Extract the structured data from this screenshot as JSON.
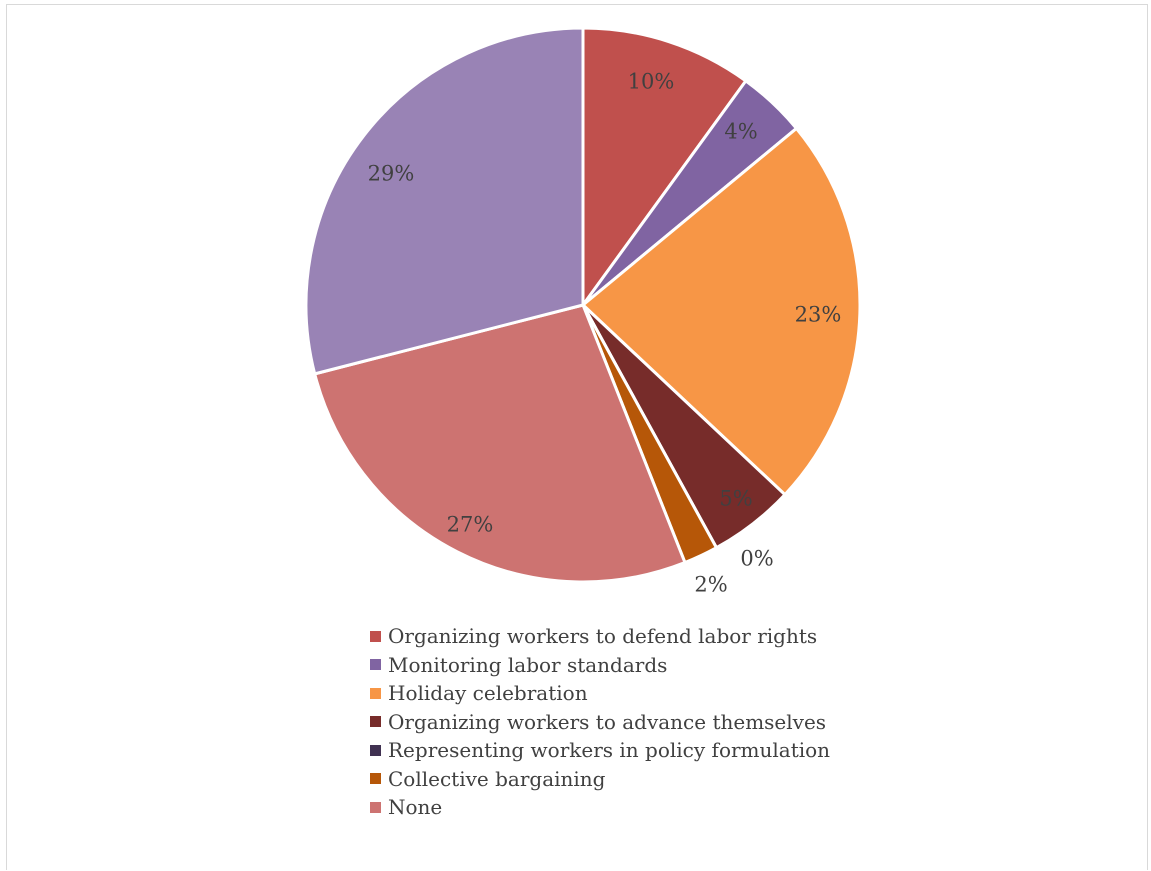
{
  "chart_data": {
    "type": "pie",
    "title": "",
    "legend_position": "bottom",
    "slices": [
      {
        "label": "Organizing workers to defend labor rights",
        "value": 10,
        "data_label": "10%",
        "color": "#c0504d"
      },
      {
        "label": "Monitoring labor standards",
        "value": 4,
        "data_label": "4%",
        "color": "#8064a2"
      },
      {
        "label": "Holiday celebration",
        "value": 23,
        "data_label": "23%",
        "color": "#f79646"
      },
      {
        "label": "Organizing workers to advance themselves",
        "value": 5,
        "data_label": "5%",
        "color": "#772c2a"
      },
      {
        "label": "Representing workers in policy formulation",
        "value": 0,
        "data_label": "0%",
        "color": "#403151"
      },
      {
        "label": "Collective bargaining",
        "value": 2,
        "data_label": "2%",
        "color": "#b65708"
      },
      {
        "label": "None",
        "value": 27,
        "data_label": "27%",
        "color": "#cd7371"
      },
      {
        "label": "",
        "value": 29,
        "data_label": "29%",
        "color": "#9983b5"
      }
    ]
  }
}
